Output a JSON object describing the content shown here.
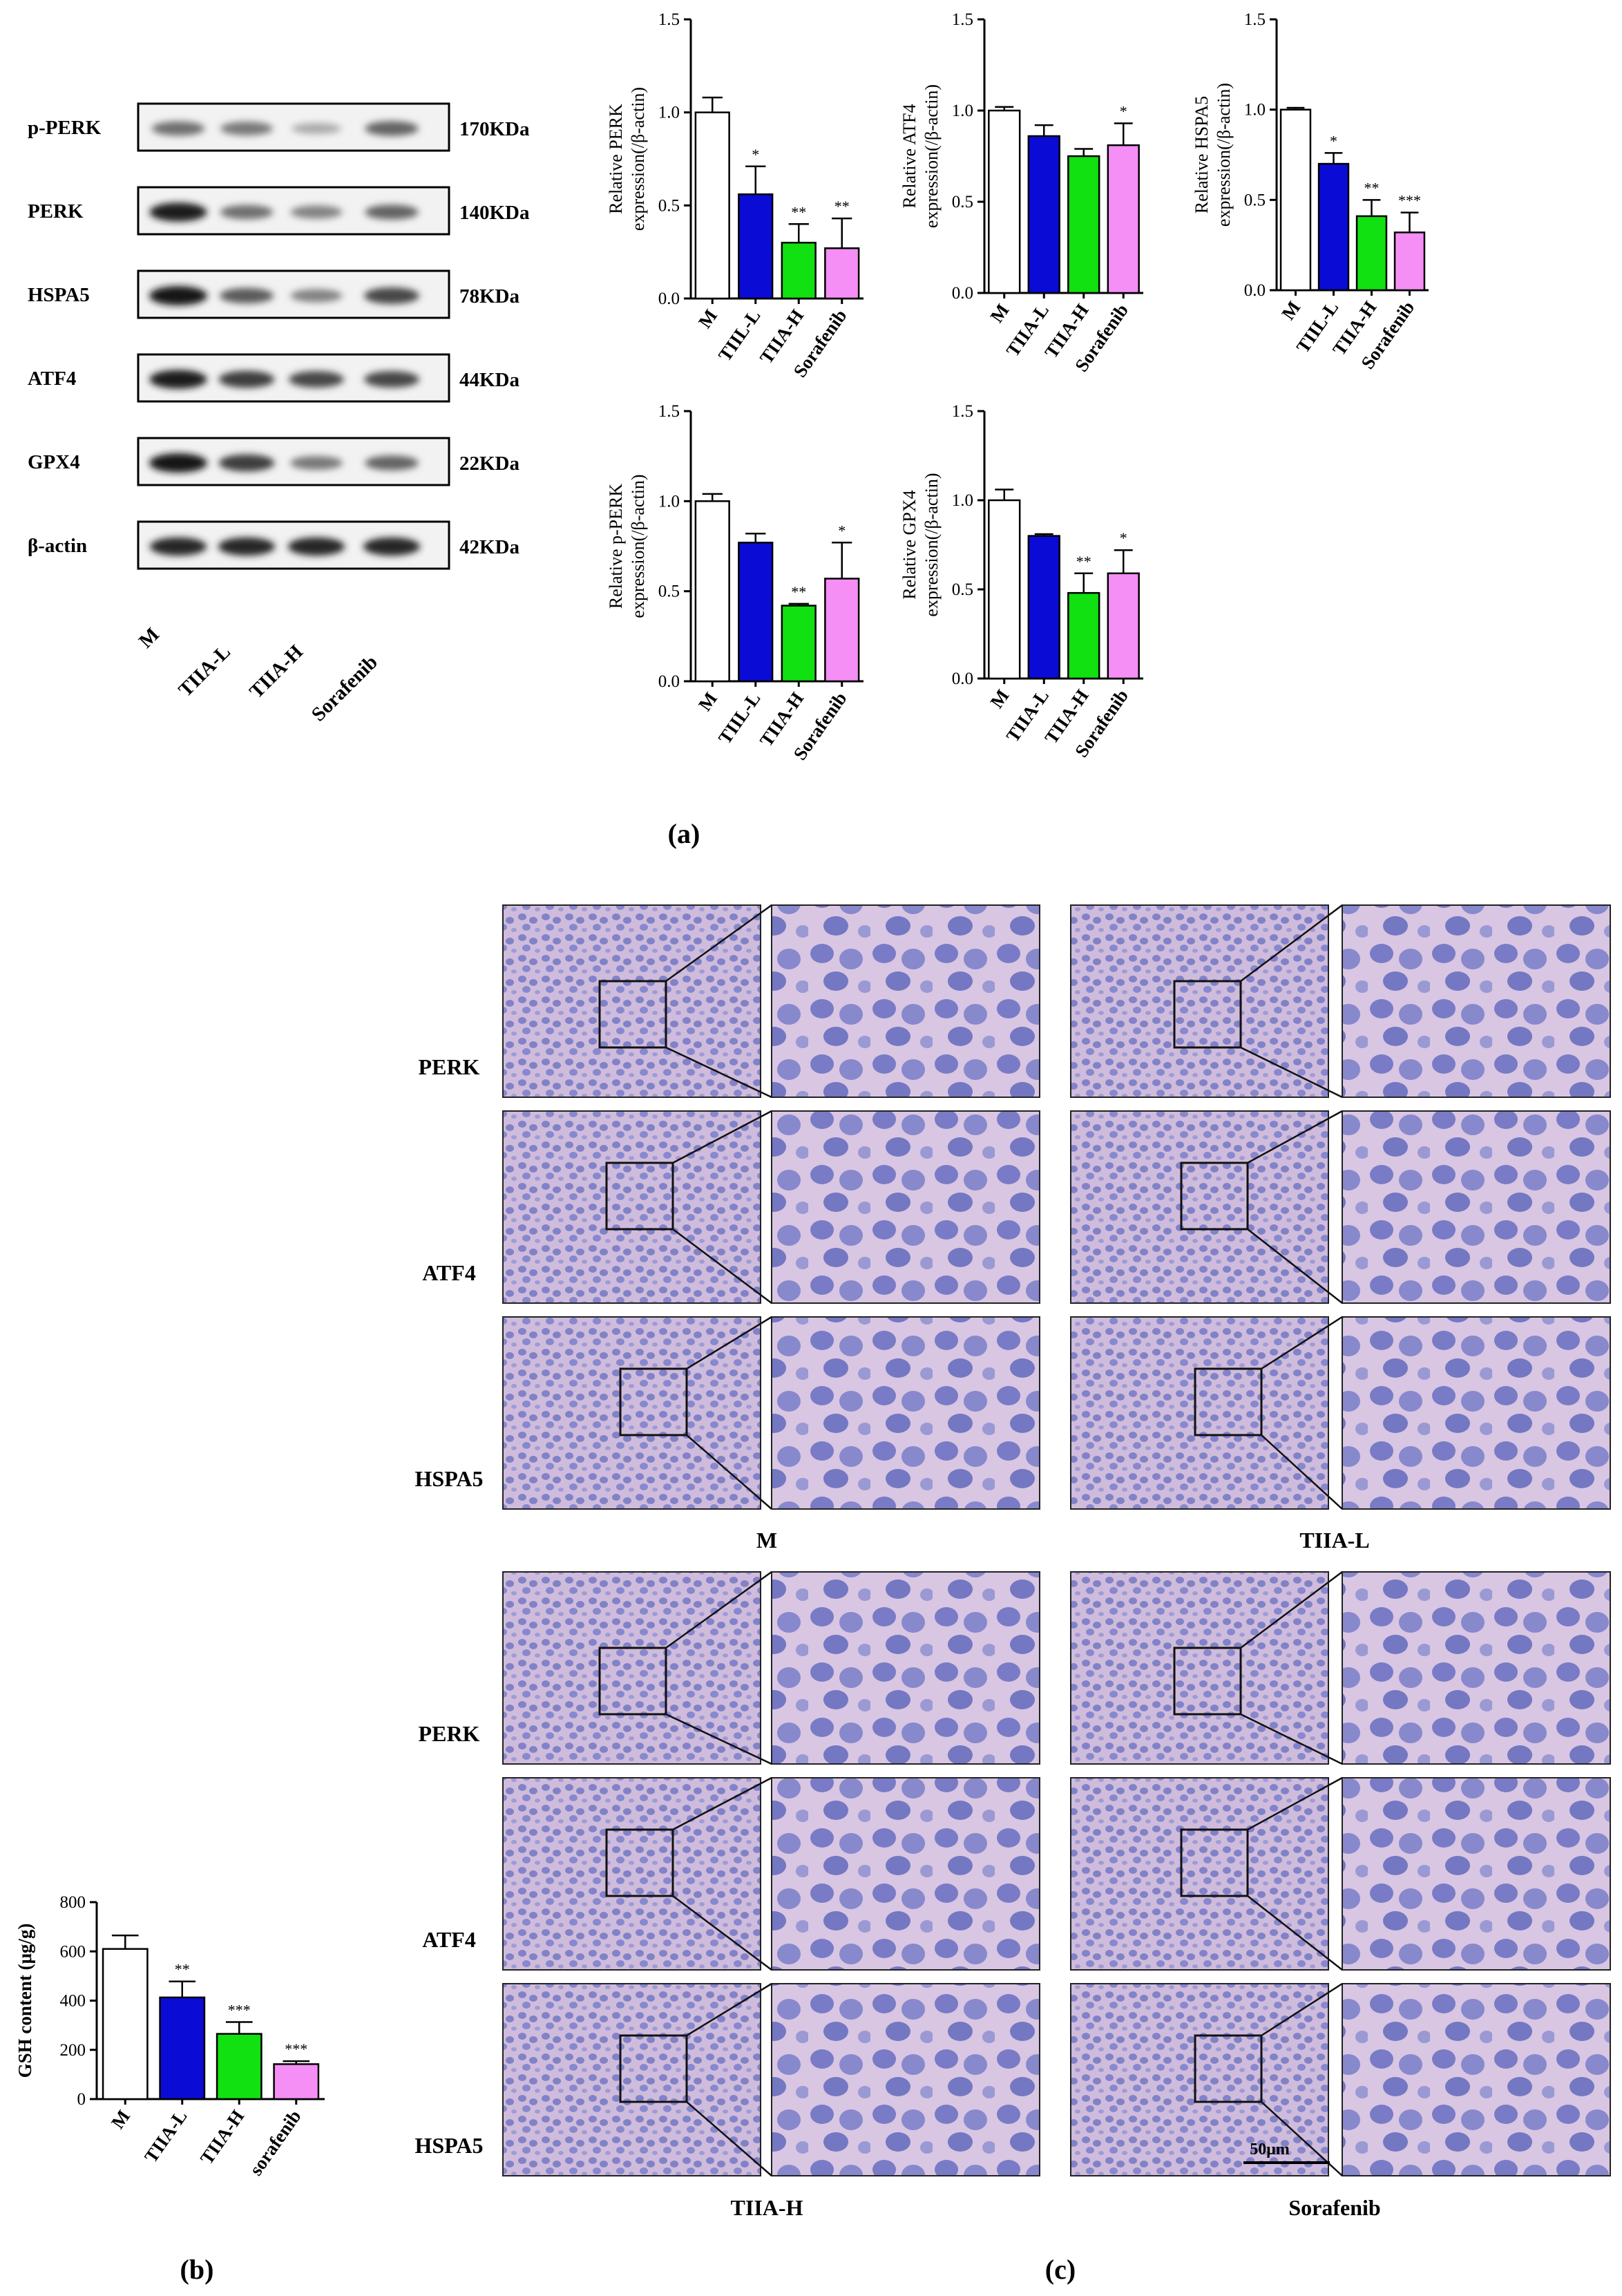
{
  "colors": {
    "M": "#ffffff",
    "TIIA-L": "#0b0bd6",
    "TIIA-H": "#11e011",
    "Sorafenib": "#f58ef5",
    "stain_bg": "#cdb9da",
    "stain_cell": "#6a6ec2"
  },
  "panel_labels": {
    "a": "(a)",
    "b": "(b)",
    "c": "(c)"
  },
  "western_blot": {
    "rows": [
      {
        "protein": "p-PERK",
        "size": "170KDa",
        "intensities": [
          0.55,
          0.5,
          0.25,
          0.6
        ]
      },
      {
        "protein": "PERK",
        "size": "140KDa",
        "intensities": [
          0.95,
          0.55,
          0.45,
          0.6
        ]
      },
      {
        "protein": "HSPA5",
        "size": "78KDa",
        "intensities": [
          1.0,
          0.65,
          0.45,
          0.75
        ]
      },
      {
        "protein": "ATF4",
        "size": "44KDa",
        "intensities": [
          0.95,
          0.8,
          0.75,
          0.75
        ]
      },
      {
        "protein": "GPX4",
        "size": "22KDa",
        "intensities": [
          1.0,
          0.8,
          0.5,
          0.6
        ]
      },
      {
        "protein": "β-actin",
        "size": "42KDa",
        "intensities": [
          0.9,
          0.9,
          0.9,
          0.9
        ]
      }
    ],
    "lanes": [
      "M",
      "TIIA-L",
      "TIIA-H",
      "Sorafenib"
    ]
  },
  "chart_data": [
    {
      "type": "bar",
      "ylabel_line1": "Relative  PERK",
      "ylabel_line2": "expression(/β-actin)",
      "categories": [
        "M",
        "TIIL-L",
        "TIIA-H",
        "Sorafenib"
      ],
      "values": [
        1.0,
        0.56,
        0.3,
        0.27
      ],
      "errors": [
        0.08,
        0.15,
        0.1,
        0.16
      ],
      "significance": [
        "",
        "*",
        "**",
        "**"
      ],
      "ylim": [
        0,
        1.5
      ],
      "yticks": [
        "0.0",
        "0.5",
        "1.0",
        "1.5"
      ]
    },
    {
      "type": "bar",
      "ylabel_line1": "Relative  ATF4",
      "ylabel_line2": "expression(/β-actin)",
      "categories": [
        "M",
        "TIIA-L",
        "TIIA-H",
        "Sorafenib"
      ],
      "values": [
        1.0,
        0.86,
        0.75,
        0.81
      ],
      "errors": [
        0.02,
        0.06,
        0.04,
        0.12
      ],
      "significance": [
        "",
        "",
        "",
        "*"
      ],
      "ylim": [
        0,
        1.5
      ],
      "yticks": [
        "0.0",
        "0.5",
        "1.0",
        "1.5"
      ]
    },
    {
      "type": "bar",
      "ylabel_line1": "Relative  HSPA5",
      "ylabel_line2": "expression(/β-actin)",
      "categories": [
        "M",
        "TIIL-L",
        "TIIA-H",
        "Sorafenib"
      ],
      "values": [
        1.0,
        0.7,
        0.41,
        0.32
      ],
      "errors": [
        0.01,
        0.06,
        0.09,
        0.11
      ],
      "significance": [
        "",
        "*",
        "**",
        "***"
      ],
      "ylim": [
        0,
        1.5
      ],
      "yticks": [
        "0.0",
        "0.5",
        "1.0",
        "1.5"
      ]
    },
    {
      "type": "bar",
      "ylabel_line1": "Relative  p-PERK",
      "ylabel_line2": "expression(/β-actin)",
      "categories": [
        "M",
        "TIIL-L",
        "TIIA-H",
        "Sorafenib"
      ],
      "values": [
        1.0,
        0.77,
        0.42,
        0.57
      ],
      "errors": [
        0.04,
        0.05,
        0.01,
        0.2
      ],
      "significance": [
        "",
        "",
        "**",
        "*"
      ],
      "ylim": [
        0,
        1.5
      ],
      "yticks": [
        "0.0",
        "0.5",
        "1.0",
        "1.5"
      ]
    },
    {
      "type": "bar",
      "ylabel_line1": "Relative  GPX4",
      "ylabel_line2": "expression(/β-actin)",
      "categories": [
        "M",
        "TIIA-L",
        "TIIA-H",
        "Sorafenib"
      ],
      "values": [
        1.0,
        0.8,
        0.48,
        0.59
      ],
      "errors": [
        0.06,
        0.01,
        0.11,
        0.13
      ],
      "significance": [
        "",
        "",
        "**",
        "*"
      ],
      "ylim": [
        0,
        1.5
      ],
      "yticks": [
        "0.0",
        "0.5",
        "1.0",
        "1.5"
      ]
    },
    {
      "type": "bar",
      "ylabel": "GSH content (μg/g)",
      "categories": [
        "M",
        "TIIA-L",
        "TIIA-H",
        "sorafenib"
      ],
      "values": [
        610,
        413,
        265,
        142
      ],
      "errors": [
        55,
        65,
        48,
        12
      ],
      "significance": [
        "",
        "**",
        "***",
        "***"
      ],
      "ylim": [
        0,
        800
      ],
      "yticks": [
        "0",
        "200",
        "400",
        "600",
        "800"
      ]
    }
  ],
  "ihc": {
    "row_labels": [
      "PERK",
      "ATF4",
      "HSPA5"
    ],
    "groups": [
      "M",
      "TIIA-L",
      "TIIA-H",
      "Sorafenib"
    ],
    "scale_bar": "50μm"
  }
}
